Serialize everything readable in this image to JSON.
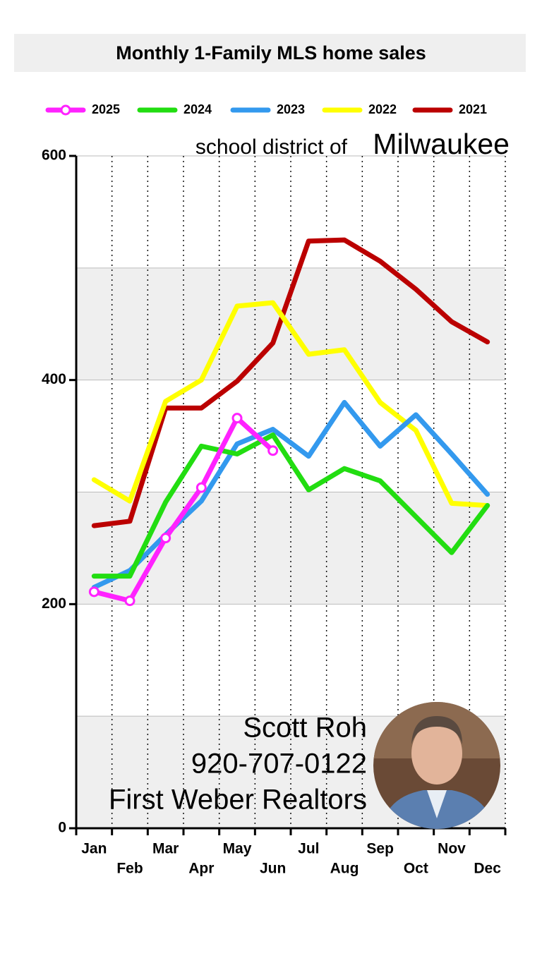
{
  "chart_data": {
    "type": "line",
    "title": "Monthly 1-Family MLS home sales",
    "subtitle": "school district of",
    "subtitle_place": "Milwaukee",
    "contact": [
      "Scott Roh",
      "920-707-0122",
      "First Weber Realtors"
    ],
    "categories": [
      "Jan",
      "Feb",
      "Mar",
      "Apr",
      "May",
      "Jun",
      "Jul",
      "Aug",
      "Sep",
      "Oct",
      "Nov",
      "Dec"
    ],
    "series": [
      {
        "name": "2025",
        "color": "#ff22ff",
        "markers": true,
        "values": [
          211,
          203,
          259,
          304,
          366,
          337,
          null,
          null,
          null,
          null,
          null,
          null
        ]
      },
      {
        "name": "2024",
        "color": "#22dd11",
        "values": [
          225,
          225,
          291,
          341,
          334,
          351,
          302,
          321,
          310,
          278,
          246,
          288
        ]
      },
      {
        "name": "2023",
        "color": "#3399ee",
        "values": [
          215,
          230,
          262,
          292,
          343,
          356,
          332,
          380,
          341,
          369,
          334,
          298
        ]
      },
      {
        "name": "2022",
        "color": "#ffff00",
        "values": [
          311,
          292,
          381,
          400,
          466,
          469,
          423,
          427,
          380,
          355,
          290,
          288
        ]
      },
      {
        "name": "2021",
        "color": "#bb0000",
        "values": [
          270,
          274,
          375,
          375,
          399,
          433,
          524,
          525,
          506,
          481,
          452,
          434
        ]
      }
    ],
    "ylim": [
      0,
      600
    ],
    "yticks": [
      0,
      200,
      400,
      600
    ],
    "ygrid": [
      100,
      200,
      300,
      400,
      500,
      600
    ]
  }
}
